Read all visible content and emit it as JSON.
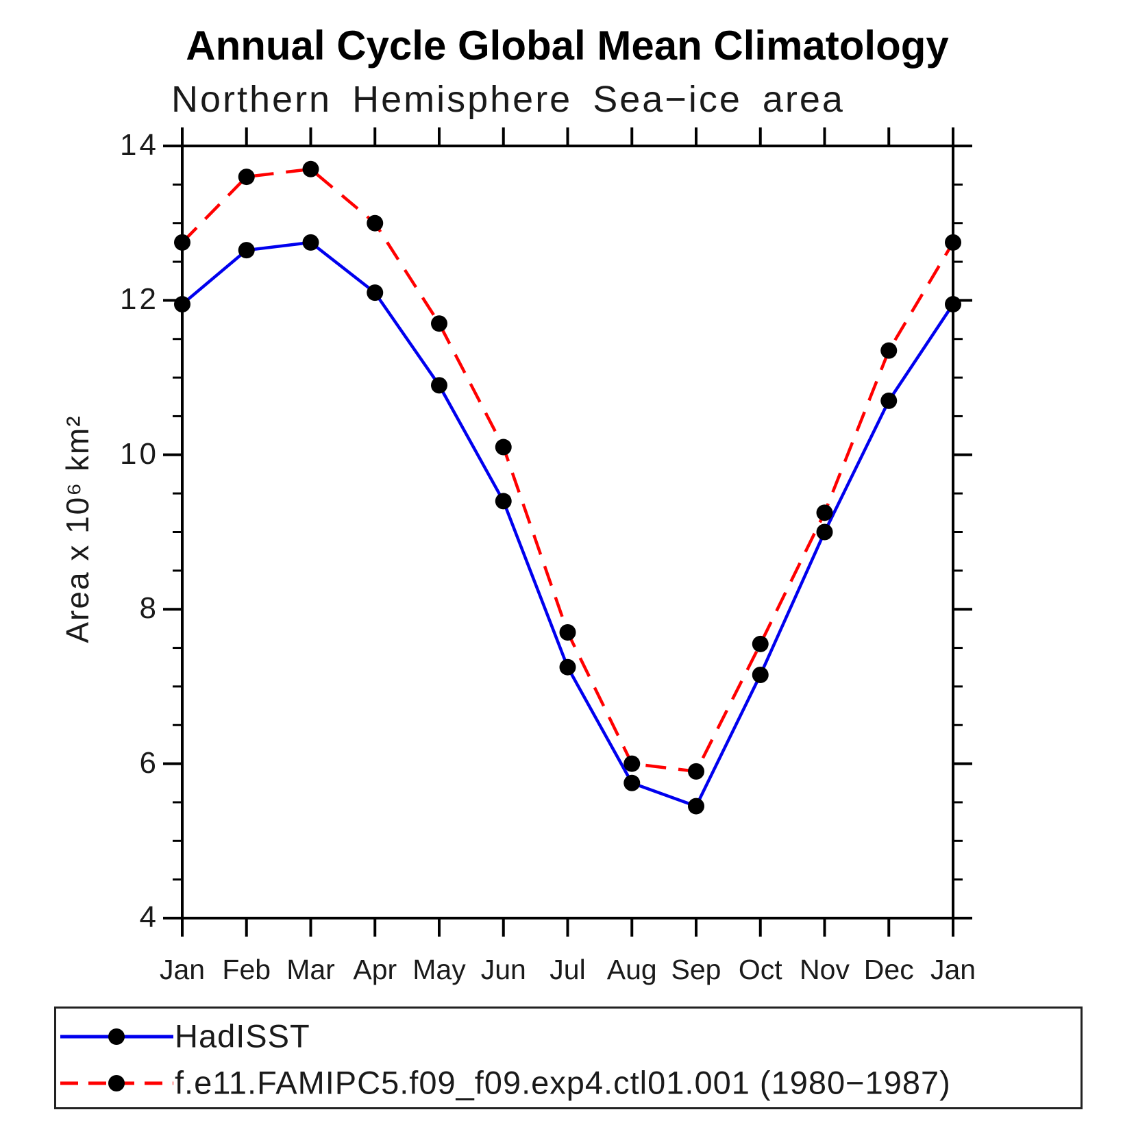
{
  "chart_data": {
    "type": "line",
    "title": "Annual Cycle Global Mean Climatology",
    "subtitle": "Northern Hemisphere Sea−ice area",
    "ylabel": "Area x 10⁶ km²",
    "xlabel": "",
    "categories": [
      "Jan",
      "Feb",
      "Mar",
      "Apr",
      "May",
      "Jun",
      "Jul",
      "Aug",
      "Sep",
      "Oct",
      "Nov",
      "Dec",
      "Jan"
    ],
    "series": [
      {
        "name": "HadISST",
        "color": "#0000ee",
        "line_style": "solid",
        "marker": "filled-circle",
        "marker_color": "#000000",
        "values": [
          11.95,
          12.65,
          12.75,
          12.1,
          10.9,
          9.4,
          7.25,
          5.75,
          5.45,
          7.15,
          9.0,
          10.7,
          11.95
        ]
      },
      {
        "name": "f.e11.FAMIPC5.f09_f09.exp4.ctl01.001 (1980−1987)",
        "color": "#ff0000",
        "line_style": "dashed",
        "marker": "filled-circle",
        "marker_color": "#000000",
        "values": [
          12.75,
          13.6,
          13.7,
          13.0,
          11.7,
          10.1,
          7.7,
          6.0,
          5.9,
          7.55,
          9.25,
          11.35,
          12.75
        ]
      }
    ],
    "ylim": [
      4,
      14
    ],
    "yticks": [
      4,
      6,
      8,
      10,
      12,
      14
    ],
    "y_minor_step": 0.5,
    "grid": false,
    "legend_position": "bottom-box",
    "frame_color": "#000000"
  }
}
